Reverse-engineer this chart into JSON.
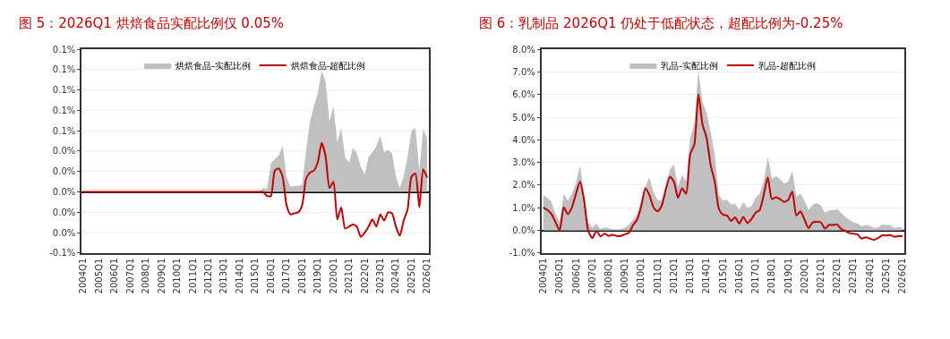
{
  "chart_data": [
    {
      "type": "area",
      "title": "图 5：2026Q1 烘焙食品实配比例仅 0.05%",
      "categories": [
        "2004Q1",
        null,
        null,
        null,
        "2005Q1",
        null,
        null,
        null,
        "2006Q1",
        null,
        null,
        null,
        "2007Q1",
        null,
        null,
        null,
        "2008Q1",
        null,
        null,
        null,
        "2009Q1",
        null,
        null,
        null,
        "2010Q1",
        null,
        null,
        null,
        "2011Q1",
        null,
        null,
        null,
        "2012Q1",
        null,
        null,
        null,
        "2013Q1",
        null,
        null,
        null,
        "2014Q1",
        null,
        null,
        null,
        "2015Q1",
        null,
        null,
        null,
        "2016Q1",
        null,
        null,
        null,
        "2017Q1",
        null,
        null,
        null,
        "2018Q1",
        null,
        null,
        null,
        "2019Q1",
        null,
        null,
        null,
        "2020Q1",
        null,
        null,
        null,
        "2021Q1",
        null,
        null,
        null,
        "2022Q1",
        null,
        null,
        null,
        "2023Q1",
        null,
        null,
        null,
        "2024Q1",
        null,
        null,
        null,
        "2025Q1",
        null,
        null,
        null,
        "2026Q1"
      ],
      "series": [
        {
          "name": "烘焙食品-实配比例",
          "color": "#c0c0c0",
          "values": [
            0,
            0,
            0,
            0,
            0,
            0,
            0,
            0,
            0,
            0,
            0,
            0,
            0,
            0,
            0,
            0,
            0,
            0,
            0,
            0,
            0,
            0,
            0,
            0,
            0,
            0,
            0,
            0,
            0,
            0,
            0,
            0,
            0,
            0,
            0,
            0,
            0,
            0,
            0,
            0,
            0,
            0,
            0,
            0,
            0,
            0,
            0.004,
            0.003,
            0.028,
            0.032,
            0.036,
            0.045,
            0.015,
            0.005,
            0.006,
            0.006,
            0.007,
            0.041,
            0.069,
            0.084,
            0.097,
            0.119,
            0.108,
            0.069,
            0.084,
            0.049,
            0.063,
            0.034,
            0.029,
            0.043,
            0.038,
            0.025,
            0.017,
            0.034,
            0.039,
            0.045,
            0.055,
            0.039,
            0.041,
            0.038,
            0.015,
            0.004,
            0.015,
            0.035,
            0.06,
            0.063,
            0.021,
            0.062,
            0.052
          ]
        },
        {
          "name": "烘焙食品-超配比例",
          "type": "line",
          "color": "#c00000",
          "values": [
            0,
            0,
            0,
            0,
            0,
            0,
            0,
            0,
            0,
            0,
            0,
            0,
            0,
            0,
            0,
            0,
            0,
            0,
            0,
            0,
            0,
            0,
            0,
            0,
            0,
            0,
            0,
            0,
            0,
            0,
            0,
            0,
            0,
            0,
            0,
            0,
            0,
            0,
            0,
            0,
            0,
            0,
            0,
            0,
            0,
            0,
            0,
            -0.004,
            -0.004,
            0.021,
            0.023,
            0.015,
            -0.013,
            -0.022,
            -0.021,
            -0.02,
            -0.013,
            0.013,
            0.019,
            0.021,
            0.029,
            0.048,
            0.035,
            0.004,
            0.01,
            -0.027,
            -0.015,
            -0.036,
            -0.034,
            -0.032,
            -0.034,
            -0.044,
            -0.04,
            -0.034,
            -0.027,
            -0.034,
            -0.022,
            -0.028,
            -0.02,
            -0.021,
            -0.034,
            -0.043,
            -0.028,
            -0.017,
            0.015,
            0.018,
            -0.015,
            0.022,
            0.014
          ]
        }
      ],
      "ylim": [
        -0.06,
        0.14
      ],
      "yticks": [
        {
          "value": -0.06,
          "label": "-0.1%"
        },
        {
          "value": -0.04,
          "label": "0.0%"
        },
        {
          "value": -0.02,
          "label": "0.0%"
        },
        {
          "value": 0,
          "label": "0.0%"
        },
        {
          "value": 0.02,
          "label": "0.0%"
        },
        {
          "value": 0.04,
          "label": "0.0%"
        },
        {
          "value": 0.06,
          "label": "0.1%"
        },
        {
          "value": 0.08,
          "label": "0.1%"
        },
        {
          "value": 0.1,
          "label": "0.1%"
        },
        {
          "value": 0.12,
          "label": "0.1%"
        },
        {
          "value": 0.14,
          "label": "0.1%"
        }
      ],
      "grid": "y",
      "legend": "top"
    },
    {
      "type": "area",
      "title": "图 6：乳制品 2026Q1 仍处于低配状态，超配比例为-0.25%",
      "categories": [
        "2004Q1",
        null,
        null,
        null,
        "2005Q1",
        null,
        null,
        null,
        "2006Q1",
        null,
        null,
        null,
        "2007Q1",
        null,
        null,
        null,
        "2008Q1",
        null,
        null,
        null,
        "2009Q1",
        null,
        null,
        null,
        "2010Q1",
        null,
        null,
        null,
        "2011Q1",
        null,
        null,
        null,
        "2012Q1",
        null,
        null,
        null,
        "2013Q1",
        null,
        null,
        null,
        "2014Q1",
        null,
        null,
        null,
        "2015Q1",
        null,
        null,
        null,
        "2016Q1",
        null,
        null,
        null,
        "2017Q1",
        null,
        null,
        null,
        "2018Q1",
        null,
        null,
        null,
        "2019Q1",
        null,
        null,
        null,
        "2020Q1",
        null,
        null,
        null,
        "2021Q1",
        null,
        null,
        null,
        "2022Q1",
        null,
        null,
        null,
        "2023Q1",
        null,
        null,
        null,
        "2024Q1",
        null,
        null,
        null,
        "2025Q1",
        null,
        null,
        null,
        "2026Q1"
      ],
      "series": [
        {
          "name": "乳品-实配比例",
          "color": "#c0c0c0",
          "values": [
            1.56,
            1.44,
            1.26,
            0.72,
            0.36,
            1.62,
            1.32,
            1.62,
            2.1,
            2.88,
            1.56,
            0.36,
            0.12,
            0.3,
            0.06,
            0.14,
            0.1,
            0.05,
            0.04,
            0.06,
            0.12,
            0.26,
            0.48,
            0.72,
            1.32,
            1.92,
            2.34,
            1.68,
            1.35,
            1.32,
            1.92,
            2.7,
            2.91,
            1.92,
            2.46,
            2.16,
            4.09,
            4.69,
            7.09,
            5.65,
            5.23,
            4.33,
            3.37,
            1.56,
            1.32,
            1.35,
            1.14,
            1.18,
            0.9,
            1.26,
            0.99,
            1.08,
            1.44,
            1.62,
            2.16,
            3.25,
            2.28,
            2.38,
            2.28,
            2.07,
            2.16,
            2.62,
            1.5,
            1.62,
            1.32,
            0.9,
            1.14,
            1.2,
            1.11,
            0.78,
            0.88,
            0.9,
            0.93,
            0.78,
            0.6,
            0.46,
            0.36,
            0.3,
            0.18,
            0.24,
            0.2,
            0.12,
            0.12,
            0.26,
            0.24,
            0.24,
            0.1,
            0.14,
            0.12
          ]
        },
        {
          "name": "乳品-超配比例",
          "type": "line",
          "color": "#c00000",
          "values": [
            1.02,
            0.9,
            0.72,
            0.36,
            0,
            1.02,
            0.72,
            1.02,
            1.62,
            2.16,
            1.32,
            -0.02,
            -0.34,
            -0.02,
            -0.26,
            -0.14,
            -0.24,
            -0.19,
            -0.24,
            -0.24,
            -0.17,
            -0.1,
            0.24,
            0.48,
            1.08,
            1.86,
            1.56,
            1.02,
            0.84,
            1.08,
            1.8,
            2.37,
            2.16,
            1.44,
            1.86,
            1.62,
            3.37,
            3.79,
            6.01,
            4.69,
            4.09,
            2.88,
            2.16,
            0.96,
            0.7,
            0.66,
            0.42,
            0.58,
            0.3,
            0.6,
            0.32,
            0.5,
            0.78,
            0.9,
            1.56,
            2.34,
            1.38,
            1.47,
            1.38,
            1.26,
            1.35,
            1.71,
            0.66,
            0.84,
            0.48,
            0.1,
            0.36,
            0.38,
            0.36,
            0.08,
            0.24,
            0.24,
            0.26,
            0.06,
            -0.02,
            -0.12,
            -0.14,
            -0.18,
            -0.36,
            -0.3,
            -0.36,
            -0.42,
            -0.34,
            -0.22,
            -0.22,
            -0.2,
            -0.28,
            -0.25,
            -0.25
          ]
        }
      ],
      "ylim": [
        -1,
        8
      ],
      "yticks": [
        {
          "value": -1,
          "label": "-1.0%"
        },
        {
          "value": 0,
          "label": "0.0%"
        },
        {
          "value": 1,
          "label": "1.0%"
        },
        {
          "value": 2,
          "label": "2.0%"
        },
        {
          "value": 3,
          "label": "3.0%"
        },
        {
          "value": 4,
          "label": "4.0%"
        },
        {
          "value": 5,
          "label": "5.0%"
        },
        {
          "value": 6,
          "label": "6.0%"
        },
        {
          "value": 7,
          "label": "7.0%"
        },
        {
          "value": 8,
          "label": "8.0%"
        }
      ],
      "grid": "y",
      "legend": "top"
    }
  ]
}
